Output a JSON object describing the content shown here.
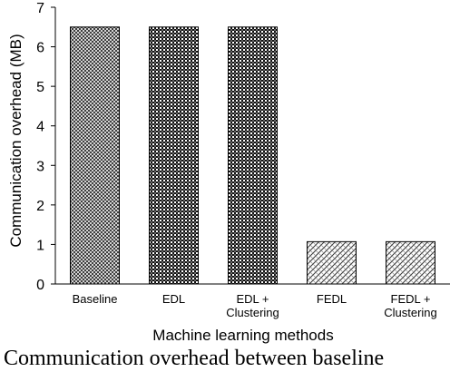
{
  "chart_data": {
    "type": "bar",
    "categories": [
      [
        "Baseline"
      ],
      [
        "EDL"
      ],
      [
        "EDL +",
        "Clustering"
      ],
      [
        "FEDL"
      ],
      [
        "FEDL +",
        "Clustering"
      ]
    ],
    "values": [
      6.5,
      6.5,
      6.5,
      1.07,
      1.07
    ],
    "xlabel": "Machine learning methods",
    "ylabel": "Communication overhead (MB)",
    "ylim": [
      0,
      7
    ],
    "yticks": [
      0,
      1,
      2,
      3,
      4,
      5,
      6,
      7
    ],
    "grid": false,
    "legend": "none",
    "bar_fills": [
      "dense-crosshatch",
      "dark-checker",
      "dark-checker",
      "diagonal-weave",
      "diagonal-weave"
    ]
  },
  "caption": "Communication overhead between baseline"
}
